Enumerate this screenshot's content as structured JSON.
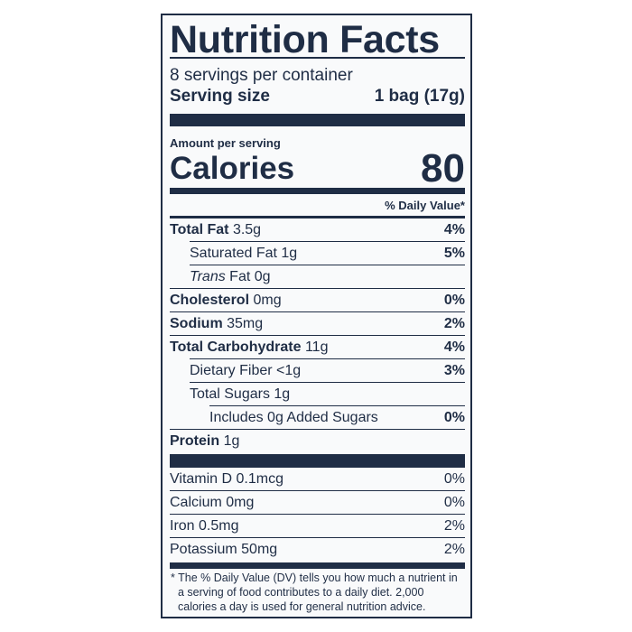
{
  "title": "Nutrition Facts",
  "servings_per_container": "8 servings per container",
  "serving_size": {
    "label": "Serving size",
    "value": "1 bag (17g)"
  },
  "amount_per_serving": "Amount per serving",
  "calories": {
    "label": "Calories",
    "value": "80"
  },
  "daily_value_header": "% Daily Value*",
  "nutrients": [
    {
      "name": "Total Fat",
      "amount": "3.5g",
      "dv": "4%"
    },
    {
      "name": "Saturated Fat",
      "amount": "1g",
      "dv": "5%"
    },
    {
      "name": "Trans",
      "name_suffix": "Fat",
      "amount": "0g",
      "dv": ""
    },
    {
      "name": "Cholesterol",
      "amount": "0mg",
      "dv": "0%"
    },
    {
      "name": "Sodium",
      "amount": "35mg",
      "dv": "2%"
    },
    {
      "name": "Total Carbohydrate",
      "amount": "11g",
      "dv": "4%"
    },
    {
      "name": "Dietary Fiber",
      "amount": "<1g",
      "dv": "3%"
    },
    {
      "name": "Total Sugars",
      "amount": "1g",
      "dv": ""
    },
    {
      "name": "Includes 0g Added Sugars",
      "amount": "",
      "dv": "0%"
    },
    {
      "name": "Protein",
      "amount": "1g",
      "dv": ""
    }
  ],
  "vitamins": [
    {
      "name": "Vitamin D 0.1mcg",
      "dv": "0%"
    },
    {
      "name": "Calcium 0mg",
      "dv": "0%"
    },
    {
      "name": "Iron 0.5mg",
      "dv": "2%"
    },
    {
      "name": "Potassium 50mg",
      "dv": "2%"
    }
  ],
  "footnote": "* The % Daily Value (DV) tells you how much a nutrient in a serving of food contributes to a daily diet. 2,000 calories a day is used for general nutrition advice.",
  "colors": {
    "ink": "#1f2d45",
    "background": "#f9fafb"
  }
}
